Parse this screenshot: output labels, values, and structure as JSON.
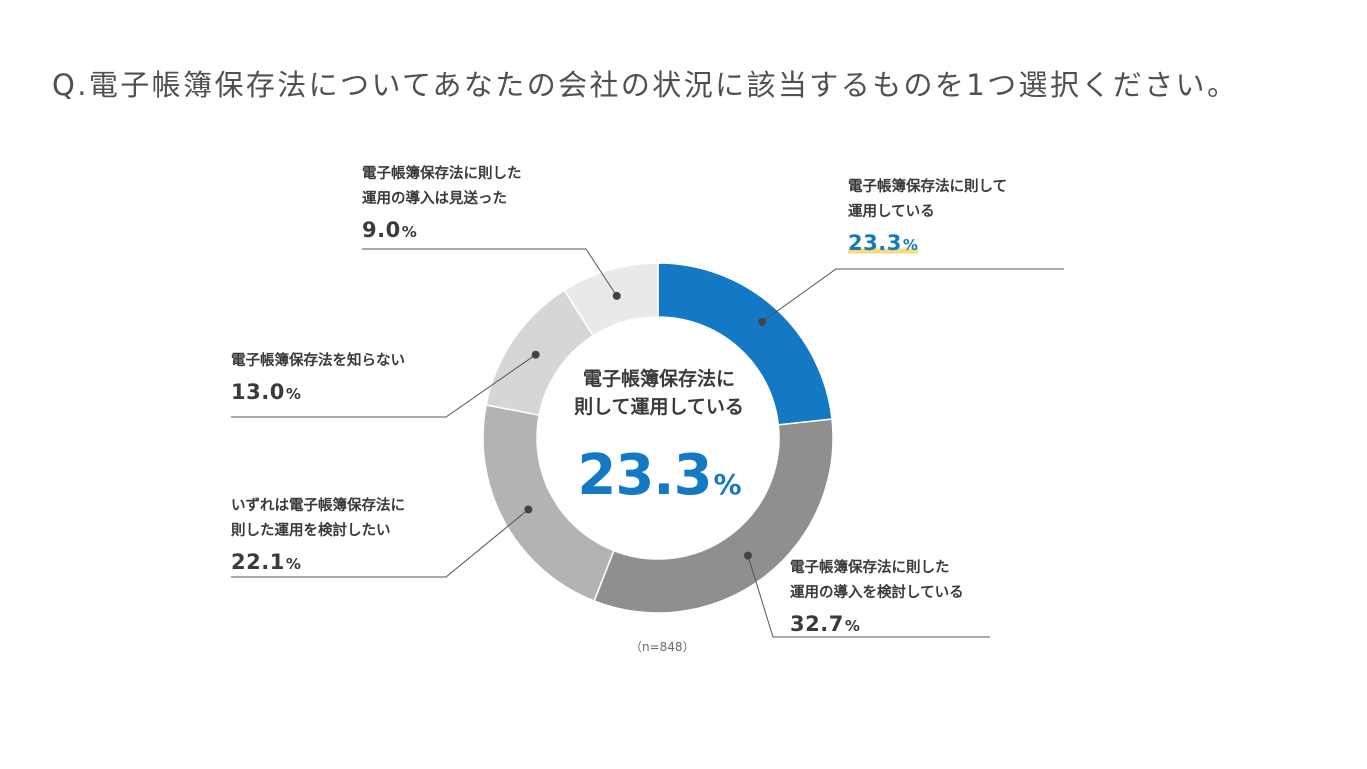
{
  "question": "Q.電子帳簿保存法についてあなたの会社の状況に該当するものを1つ選択ください。",
  "center": {
    "text_line1": "電子帳簿保存法に",
    "text_line2": "則して運用している",
    "value": "23.3",
    "unit": "%"
  },
  "sample_note": "（n=848）",
  "colors": {
    "accent": "#1479c4",
    "highlight": "#f4db7c"
  },
  "chart_data": {
    "type": "pie",
    "title": "Q.電子帳簿保存法についてあなたの会社の状況に該当するものを1つ選択ください。",
    "unit": "%",
    "n": 848,
    "slices": [
      {
        "name": "電子帳簿保存法に則して運用している",
        "line1": "電子帳簿保存法に則して",
        "line2": "運用している",
        "value": 23.3,
        "value_label": "23.3",
        "color": "#1479c4"
      },
      {
        "name": "電子帳簿保存法に則した運用の導入を検討している",
        "line1": "電子帳簿保存法に則した",
        "line2": "運用の導入を検討している",
        "value": 32.7,
        "value_label": "32.7",
        "color": "#8f8f8f"
      },
      {
        "name": "いずれは電子帳簿保存法に則した運用を検討したい",
        "line1": "いずれは電子帳簿保存法に",
        "line2": "則した運用を検討したい",
        "value": 22.1,
        "value_label": "22.1",
        "color": "#b3b3b3"
      },
      {
        "name": "電子帳簿保存法を知らない",
        "line1": "電子帳簿保存法を知らない",
        "line2": "",
        "value": 13.0,
        "value_label": "13.0",
        "color": "#d6d6d6"
      },
      {
        "name": "電子帳簿保存法に則した運用の導入は見送った",
        "line1": "電子帳簿保存法に則した",
        "line2": "運用の導入は見送った",
        "value": 9.0,
        "value_label": "9.0",
        "color": "#e9e9e9"
      }
    ]
  }
}
